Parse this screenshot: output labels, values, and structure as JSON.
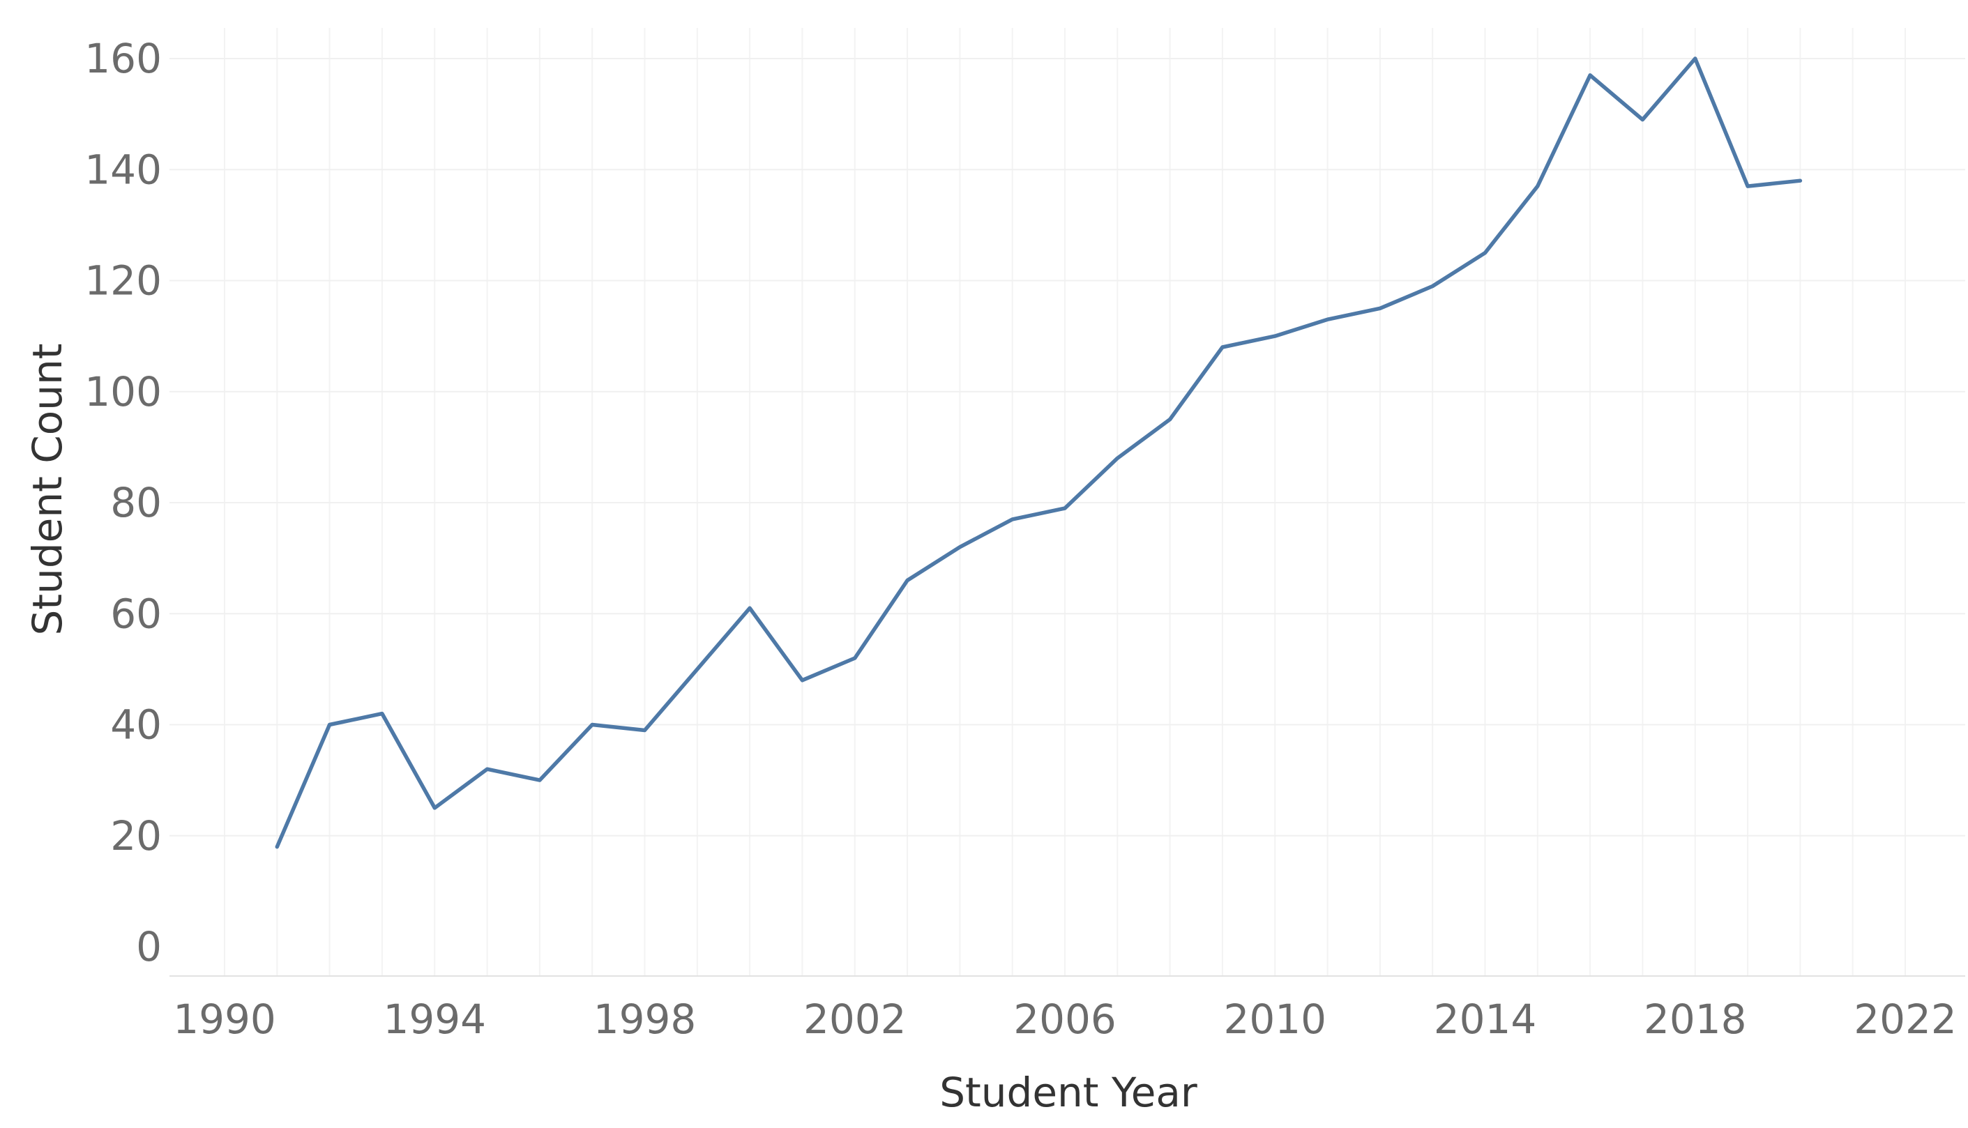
{
  "chart_data": {
    "type": "line",
    "title": "",
    "xlabel": "Student Year",
    "ylabel": "Student Count",
    "xlim": [
      1990,
      2022
    ],
    "ylim": [
      0,
      160
    ],
    "x_ticks": [
      1990,
      1994,
      1998,
      2002,
      2006,
      2010,
      2014,
      2018,
      2022
    ],
    "y_ticks": [
      0,
      20,
      40,
      60,
      80,
      100,
      120,
      140,
      160
    ],
    "x_tick_labels": [
      "1990",
      "1994",
      "1998",
      "2002",
      "2006",
      "2010",
      "2014",
      "2018",
      "2022"
    ],
    "y_tick_labels": [
      "0",
      "20",
      "40",
      "60",
      "80",
      "100",
      "120",
      "140",
      "160"
    ],
    "grid": true,
    "legend": "none",
    "series": [
      {
        "color": "#4e79a7",
        "x": [
          1991,
          1992,
          1993,
          1994,
          1995,
          1996,
          1997,
          1998,
          1999,
          2000,
          2001,
          2002,
          2003,
          2004,
          2005,
          2006,
          2007,
          2008,
          2009,
          2010,
          2011,
          2012,
          2013,
          2014,
          2015,
          2016,
          2017,
          2018,
          2019,
          2020
        ],
        "values": [
          18,
          40,
          42,
          25,
          32,
          30,
          40,
          39,
          50,
          61,
          48,
          52,
          66,
          72,
          77,
          79,
          88,
          95,
          108,
          110,
          113,
          115,
          119,
          125,
          137,
          157,
          149,
          160,
          137,
          138
        ]
      }
    ]
  }
}
